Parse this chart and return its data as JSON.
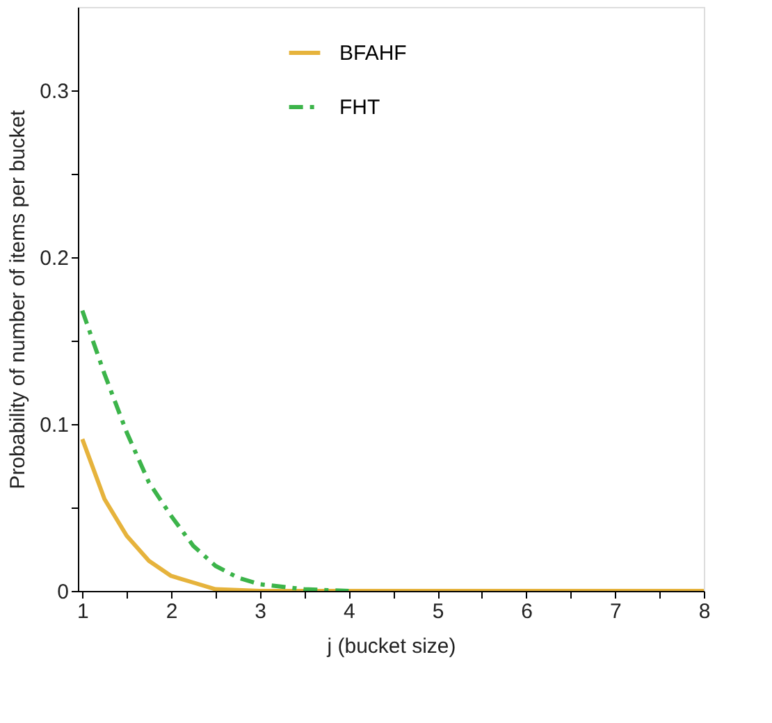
{
  "chart_data": {
    "type": "line",
    "xlabel": "j (bucket size)",
    "ylabel": "Probability of number of items per bucket",
    "xlim": [
      0.95,
      8
    ],
    "xticks": [
      1,
      {
        "value": 1.5,
        "label": null
      },
      2,
      {
        "value": 2.5,
        "label": null
      },
      3,
      {
        "value": 3.5,
        "label": null
      },
      4,
      {
        "value": 4.5,
        "label": null
      },
      5,
      {
        "value": 5.5,
        "label": null
      },
      6,
      {
        "value": 6.5,
        "label": null
      },
      7,
      {
        "value": 7.5,
        "label": null
      },
      8
    ],
    "ylim": [
      0,
      0.35
    ],
    "yticks": [
      0,
      {
        "value": 0.05,
        "label": null
      },
      0.1,
      {
        "value": 0.15,
        "label": null
      },
      0.2,
      {
        "value": 0.25,
        "label": null
      },
      0.3
    ],
    "grid": false,
    "legend": "top",
    "marker": "none",
    "series": [
      {
        "name": "BFAHF",
        "color": "#e6b33c",
        "line_style": "solid",
        "x": [
          1,
          1.25,
          1.5,
          1.75,
          2,
          2.25,
          2.5,
          3,
          4,
          8
        ],
        "values": [
          0.091,
          0.055,
          0.033,
          0.018,
          0.009,
          0.005,
          0.001,
          0,
          0,
          0
        ]
      },
      {
        "name": "FHT",
        "color": "#3cb44a",
        "line_style": "dashdot",
        "x": [
          1,
          1.25,
          1.5,
          1.75,
          2,
          2.25,
          2.5,
          2.75,
          3,
          3.5,
          4
        ],
        "values": [
          0.168,
          0.13,
          0.095,
          0.065,
          0.045,
          0.027,
          0.015,
          0.008,
          0.004,
          0.001,
          0
        ]
      }
    ]
  }
}
